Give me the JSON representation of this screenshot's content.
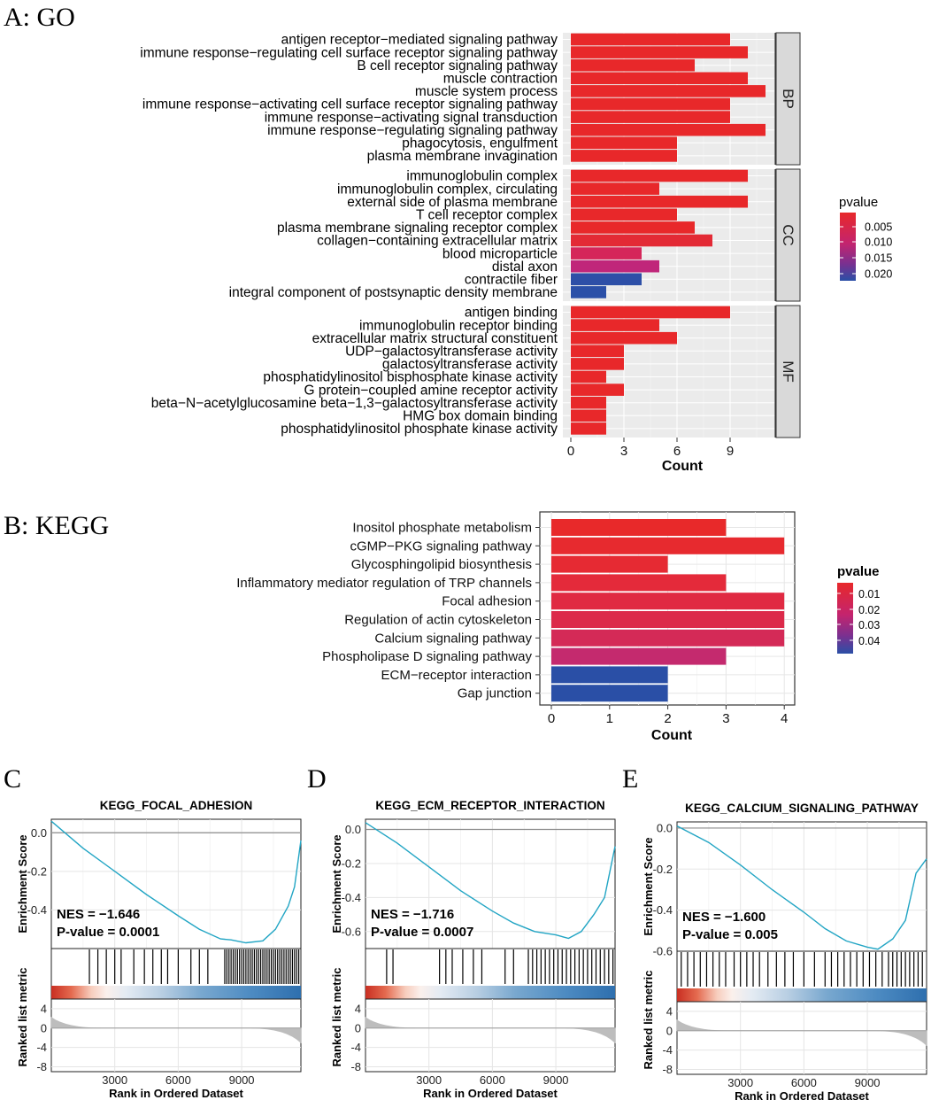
{
  "panels": {
    "a": "A: GO",
    "b": "B: KEGG",
    "c": "C",
    "d": "D",
    "e": "E"
  },
  "chart_data": [
    {
      "id": "go",
      "type": "bar",
      "orientation": "horizontal",
      "xlabel": "Count",
      "xticks": [
        0,
        3,
        6,
        9
      ],
      "xlim": [
        0,
        11
      ],
      "legend": {
        "title": "pvalue",
        "ticks": [
          "0.005",
          "0.010",
          "0.015",
          "0.020"
        ],
        "position": "right"
      },
      "facets": [
        {
          "name": "BP",
          "bars": [
            {
              "label": "antigen receptor−mediated signaling pathway",
              "value": 9,
              "color": "#e8282a"
            },
            {
              "label": "immune response−regulating cell surface receptor signaling pathway",
              "value": 10,
              "color": "#e8282a"
            },
            {
              "label": "B cell receptor signaling pathway",
              "value": 7,
              "color": "#e8282a"
            },
            {
              "label": "muscle contraction",
              "value": 10,
              "color": "#e8282a"
            },
            {
              "label": "muscle system process",
              "value": 11,
              "color": "#e8282a"
            },
            {
              "label": "immune response−activating cell surface receptor signaling pathway",
              "value": 9,
              "color": "#e8282a"
            },
            {
              "label": "immune response−activating signal transduction",
              "value": 9,
              "color": "#e8282a"
            },
            {
              "label": "immune response−regulating signaling pathway",
              "value": 11,
              "color": "#e8282a"
            },
            {
              "label": "phagocytosis, engulfment",
              "value": 6,
              "color": "#e8282a"
            },
            {
              "label": "plasma membrane invagination",
              "value": 6,
              "color": "#e8282a"
            }
          ]
        },
        {
          "name": "CC",
          "bars": [
            {
              "label": "immunoglobulin complex",
              "value": 10,
              "color": "#e8282a"
            },
            {
              "label": "immunoglobulin complex, circulating",
              "value": 5,
              "color": "#e8282a"
            },
            {
              "label": "external side of plasma membrane",
              "value": 10,
              "color": "#e8282a"
            },
            {
              "label": "T cell receptor complex",
              "value": 6,
              "color": "#e8282a"
            },
            {
              "label": "plasma membrane signaling receptor complex",
              "value": 7,
              "color": "#e8282a"
            },
            {
              "label": "collagen−containing extracellular matrix",
              "value": 8,
              "color": "#e32a35"
            },
            {
              "label": "blood microparticle",
              "value": 4,
              "color": "#d5265a"
            },
            {
              "label": "distal axon",
              "value": 5,
              "color": "#c0267a"
            },
            {
              "label": "contractile fiber",
              "value": 4,
              "color": "#2d4fa7"
            },
            {
              "label": "integral component of postsynaptic density membrane",
              "value": 2,
              "color": "#2b50a8"
            }
          ]
        },
        {
          "name": "MF",
          "bars": [
            {
              "label": "antigen binding",
              "value": 9,
              "color": "#e8282a"
            },
            {
              "label": "immunoglobulin receptor binding",
              "value": 5,
              "color": "#e8282a"
            },
            {
              "label": "extracellular matrix structural constituent",
              "value": 6,
              "color": "#e8282a"
            },
            {
              "label": "UDP−galactosyltransferase activity",
              "value": 3,
              "color": "#e8282a"
            },
            {
              "label": "galactosyltransferase activity",
              "value": 3,
              "color": "#e8282a"
            },
            {
              "label": "phosphatidylinositol bisphosphate kinase activity",
              "value": 2,
              "color": "#e8282a"
            },
            {
              "label": "G protein−coupled amine receptor activity",
              "value": 3,
              "color": "#e8282a"
            },
            {
              "label": "beta−N−acetylglucosamine beta−1,3−galactosyltransferase activity",
              "value": 2,
              "color": "#e8282a"
            },
            {
              "label": "HMG box domain binding",
              "value": 2,
              "color": "#e8282a"
            },
            {
              "label": "phosphatidylinositol phosphate kinase activity",
              "value": 2,
              "color": "#e8282a"
            }
          ]
        }
      ]
    },
    {
      "id": "kegg",
      "type": "bar",
      "orientation": "horizontal",
      "xlabel": "Count",
      "xticks": [
        0,
        1,
        2,
        3,
        4
      ],
      "xlim": [
        0,
        4
      ],
      "legend": {
        "title": "pvalue",
        "ticks": [
          "0.01",
          "0.02",
          "0.03",
          "0.04"
        ],
        "position": "right"
      },
      "bars": [
        {
          "label": "Inositol phosphate metabolism",
          "value": 3,
          "color": "#e8292a"
        },
        {
          "label": "cGMP−PKG signaling pathway",
          "value": 4,
          "color": "#e72a2f"
        },
        {
          "label": "Glycosphingolipid biosynthesis",
          "value": 2,
          "color": "#e62a33"
        },
        {
          "label": "Inflammatory mediator regulation of TRP channels",
          "value": 3,
          "color": "#e42a3a"
        },
        {
          "label": "Focal adhesion",
          "value": 4,
          "color": "#e02a42"
        },
        {
          "label": "Regulation of actin cytoskeleton",
          "value": 4,
          "color": "#dc2a4a"
        },
        {
          "label": "Calcium signaling pathway",
          "value": 4,
          "color": "#d42a57"
        },
        {
          "label": "Phospholipase D signaling pathway",
          "value": 3,
          "color": "#c42a6e"
        },
        {
          "label": "ECM−receptor interaction",
          "value": 2,
          "color": "#2a4fa6"
        },
        {
          "label": "Gap junction",
          "value": 2,
          "color": "#2a4fa6"
        }
      ]
    },
    {
      "id": "gsea_c",
      "type": "line",
      "title": "KEGG_FOCAL_ADHESION",
      "xlabel": "Rank in Ordered Dataset",
      "ylabel_top": "Enrichment Score",
      "ylabel_bottom": "Ranked list metric",
      "nes": "NES = −1.646",
      "pvalue": "P-value = 0.0001",
      "xticks": [
        "3000",
        "6000",
        "9000"
      ],
      "yticks_top": [
        "0.0",
        "-0.2",
        "-0.4"
      ],
      "yticks_bottom": [
        "4",
        "0",
        "-4",
        "-8"
      ],
      "ylim_top": [
        -0.6,
        0.07
      ],
      "x_max": 11800,
      "curve": [
        [
          0,
          0.06
        ],
        [
          1500,
          -0.08
        ],
        [
          3000,
          -0.2
        ],
        [
          4500,
          -0.32
        ],
        [
          6000,
          -0.43
        ],
        [
          7000,
          -0.5
        ],
        [
          8000,
          -0.55
        ],
        [
          8500,
          -0.555
        ],
        [
          9200,
          -0.57
        ],
        [
          10000,
          -0.56
        ],
        [
          10600,
          -0.5
        ],
        [
          11200,
          -0.38
        ],
        [
          11500,
          -0.28
        ],
        [
          11800,
          -0.04
        ]
      ],
      "hits": [
        1800,
        2200,
        2600,
        3000,
        3300,
        3900,
        4400,
        4800,
        5200,
        5500,
        6000,
        6600,
        7000,
        7400,
        8200,
        8300,
        8400,
        8500,
        8600,
        8700,
        8800,
        8900,
        9000,
        9100,
        9200,
        9300,
        9400,
        9500,
        9600,
        9700,
        9800,
        9900,
        10000,
        10100,
        10200,
        10300,
        10400,
        10500,
        10600,
        10700,
        10800,
        10900,
        11000,
        11100,
        11200,
        11300,
        11400,
        11500,
        11600,
        11700
      ]
    },
    {
      "id": "gsea_d",
      "type": "line",
      "title": "KEGG_ECM_RECEPTOR_INTERACTION",
      "xlabel": "Rank in Ordered Dataset",
      "ylabel_top": "Enrichment Score",
      "ylabel_bottom": "Ranked list metric",
      "nes": "NES = −1.716",
      "pvalue": "P-value = 0.0007",
      "xticks": [
        "3000",
        "6000",
        "9000"
      ],
      "yticks_top": [
        "0.0",
        "-0.2",
        "-0.4",
        "-0.6"
      ],
      "yticks_bottom": [
        "4",
        "0",
        "-4",
        "-8"
      ],
      "ylim_top": [
        -0.7,
        0.06
      ],
      "x_max": 11800,
      "curve": [
        [
          0,
          0.04
        ],
        [
          1500,
          -0.08
        ],
        [
          3000,
          -0.22
        ],
        [
          4500,
          -0.36
        ],
        [
          6000,
          -0.48
        ],
        [
          7000,
          -0.55
        ],
        [
          8000,
          -0.6
        ],
        [
          9000,
          -0.62
        ],
        [
          9600,
          -0.64
        ],
        [
          10200,
          -0.6
        ],
        [
          10800,
          -0.5
        ],
        [
          11300,
          -0.4
        ],
        [
          11800,
          -0.1
        ]
      ],
      "hits": [
        1000,
        1300,
        3500,
        3800,
        4100,
        4600,
        5100,
        5500,
        6600,
        7000,
        7700,
        7900,
        8100,
        8300,
        8500,
        8700,
        8900,
        9100,
        9300,
        9500,
        9700,
        9900,
        10100,
        10300,
        10500,
        10700,
        10900,
        11100,
        11300,
        11500,
        11700
      ]
    },
    {
      "id": "gsea_e",
      "type": "line",
      "title": "KEGG_CALCIUM_SIGNALING_PATHWAY",
      "xlabel": "Rank in Ordered Dataset",
      "ylabel_top": "Enrichment Score",
      "ylabel_bottom": "Ranked list metric",
      "nes": "NES = −1.600",
      "pvalue": "P-value = 0.005",
      "xticks": [
        "3000",
        "6000",
        "9000"
      ],
      "yticks_top": [
        "0.0",
        "-0.2",
        "-0.4",
        "-0.6"
      ],
      "yticks_bottom": [
        "4",
        "0",
        "-4",
        "-8"
      ],
      "ylim_top": [
        -0.6,
        0.03
      ],
      "x_max": 11800,
      "curve": [
        [
          0,
          0.01
        ],
        [
          1500,
          -0.07
        ],
        [
          3000,
          -0.18
        ],
        [
          4500,
          -0.3
        ],
        [
          6000,
          -0.41
        ],
        [
          7000,
          -0.49
        ],
        [
          8000,
          -0.55
        ],
        [
          9000,
          -0.58
        ],
        [
          9500,
          -0.59
        ],
        [
          10200,
          -0.54
        ],
        [
          10800,
          -0.45
        ],
        [
          11300,
          -0.22
        ],
        [
          11800,
          -0.15
        ]
      ],
      "hits": [
        200,
        500,
        800,
        1100,
        1400,
        1700,
        2000,
        2300,
        2700,
        3000,
        3300,
        3600,
        3900,
        4300,
        4700,
        5100,
        5500,
        6000,
        6500,
        7000,
        7300,
        7600,
        7900,
        8200,
        8500,
        8800,
        9100,
        9400,
        9700,
        10000,
        10200,
        10400,
        10600,
        10800,
        11000,
        11200,
        11400,
        11600
      ]
    }
  ]
}
